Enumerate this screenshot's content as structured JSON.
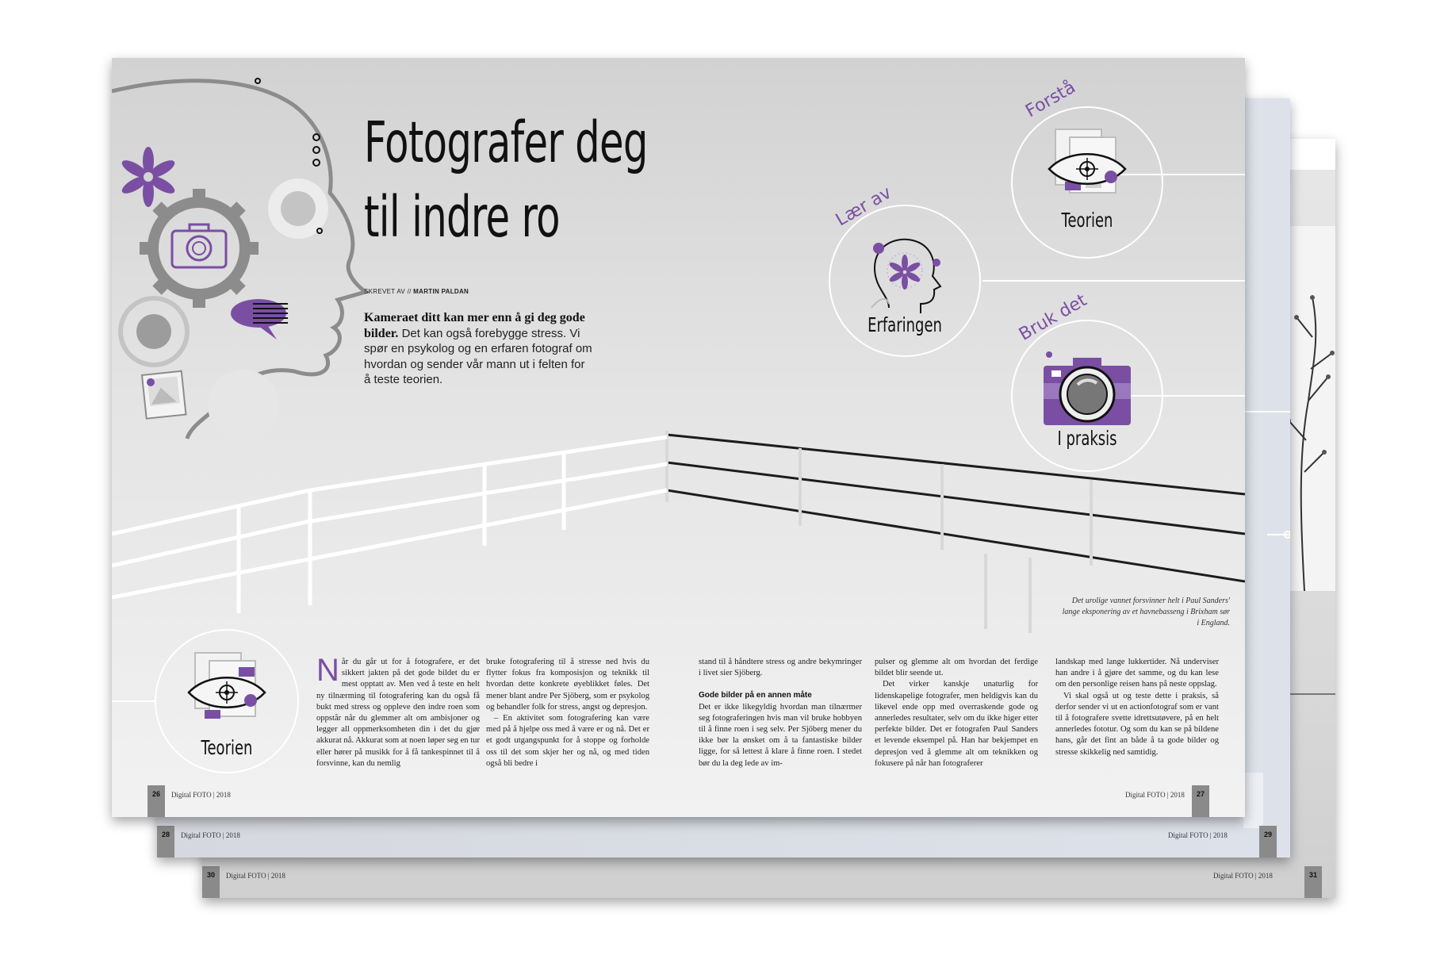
{
  "spreads": {
    "back": {
      "footer_left": "Digital FOTO | 2018",
      "page_left": "30",
      "footer_right": "Digital FOTO | 2018",
      "page_right": "31"
    },
    "middle": {
      "footer_left": "Digital FOTO | 2018",
      "page_left": "28",
      "footer_right": "Digital FOTO | 2018",
      "page_right": "29"
    },
    "front": {
      "footer_left": "Digital FOTO | 2018",
      "page_left": "26",
      "footer_right": "Digital FOTO | 2018",
      "page_right": "27"
    }
  },
  "article": {
    "title_line1": "Fotografer deg",
    "title_line2": "til indre ro",
    "byline_prefix": "SKREVET AV //",
    "byline_author": "MARTIN PALDAN",
    "lead_bold": "Kameraet ditt kan mer enn å gi deg gode bilder.",
    "lead_text": " Det kan også forebygge stress. Vi spør en psykolog og en erfaren fotograf om hvordan og sender vår mann ut i felten for å teste teorien.",
    "dropcap": "N",
    "col1": "år du går ut for å fotografere, er det sikkert jakten på det gode bildet du er mest opptatt av. Men ved å teste en helt ny tilnærming til fotografering kan du også få bukt med stress og oppleve den indre roen som oppstår når du glemmer alt om ambisjoner og legger all oppmerksomheten din i det du gjør akkurat nå. Akkurat som at noen løper seg en tur eller hører på musikk for å få tankespinnet til å forsvinne, kan du nemlig",
    "col2_p1": "bruke fotografering til å stresse ned hvis du flytter fokus fra komposisjon og teknikk til hvordan dette konkrete øyeblikket føles. Det mener blant andre Per Sjöberg, som er psykolog og behandler folk for stress, angst og depresjon.",
    "col2_p2": "– En aktivitet som fotografering kan være med på å hjelpe oss med å være er og nå. Det er et godt utgangspunkt for å stoppe og forholde oss til det som skjer her og nå, og med tiden også bli bedre i",
    "col3_p1": "stand til å håndtere stress og andre bekymringer i livet sier Sjöberg.",
    "col3_heading": "Gode bilder på en annen måte",
    "col3_p2": "Det er ikke likegyldig hvordan man tilnærmer seg fotograferingen hvis man vil bruke hobbyen til å finne roen i seg selv. Per Sjöberg mener du ikke bør la ønsket om å ta fantastiske bilder ligge, for så lettest å klare å finne roen. I stedet bør du la deg lede av im-",
    "col4_p1": "pulser og glemme alt om hvordan det ferdige bildet blir seende ut.",
    "col4_p2": "Det virker kanskje unaturlig for lidenskapelige fotografer, men heldigvis kan du likevel ende opp med overraskende gode og annerledes resultater, selv om du ikke higer etter perfekte bilder. Det er fotografen Paul Sanders et levende eksempel på. Han har bekjempet en depresjon ved å glemme alt om teknikken og fokusere på når han fotograferer",
    "col5_p1": "landskap med lange lukkertider. Nå underviser han andre i å gjøre det samme, og du kan lese om den personlige reisen hans på neste oppslag.",
    "col5_p2": "Vi skal også ut og teste dette i praksis, så derfor sender vi ut en actionfotograf som er vant til å fotografere svette idrettsutøvere, på en helt annerledes fototur. Og som du kan se på bildene hans, går det fint an både å ta gode bilder og stresse skikkelig ned samtidig.",
    "caption": "Det urolige vannet forsvinner helt i Paul Sanders' lange eksponering av et havnebasseng i Brixham sør i England."
  },
  "infographic": {
    "forsta_arc": "Forstå",
    "forsta_label": "Teorien",
    "laer_arc": "Lær av",
    "laer_label": "Erfaringen",
    "bruk_arc": "Bruk det",
    "bruk_label": "I praksis",
    "bottom_label": "Teorien"
  },
  "colors": {
    "accent": "#7a4fa3",
    "grey_icon": "#8c8c8c"
  }
}
